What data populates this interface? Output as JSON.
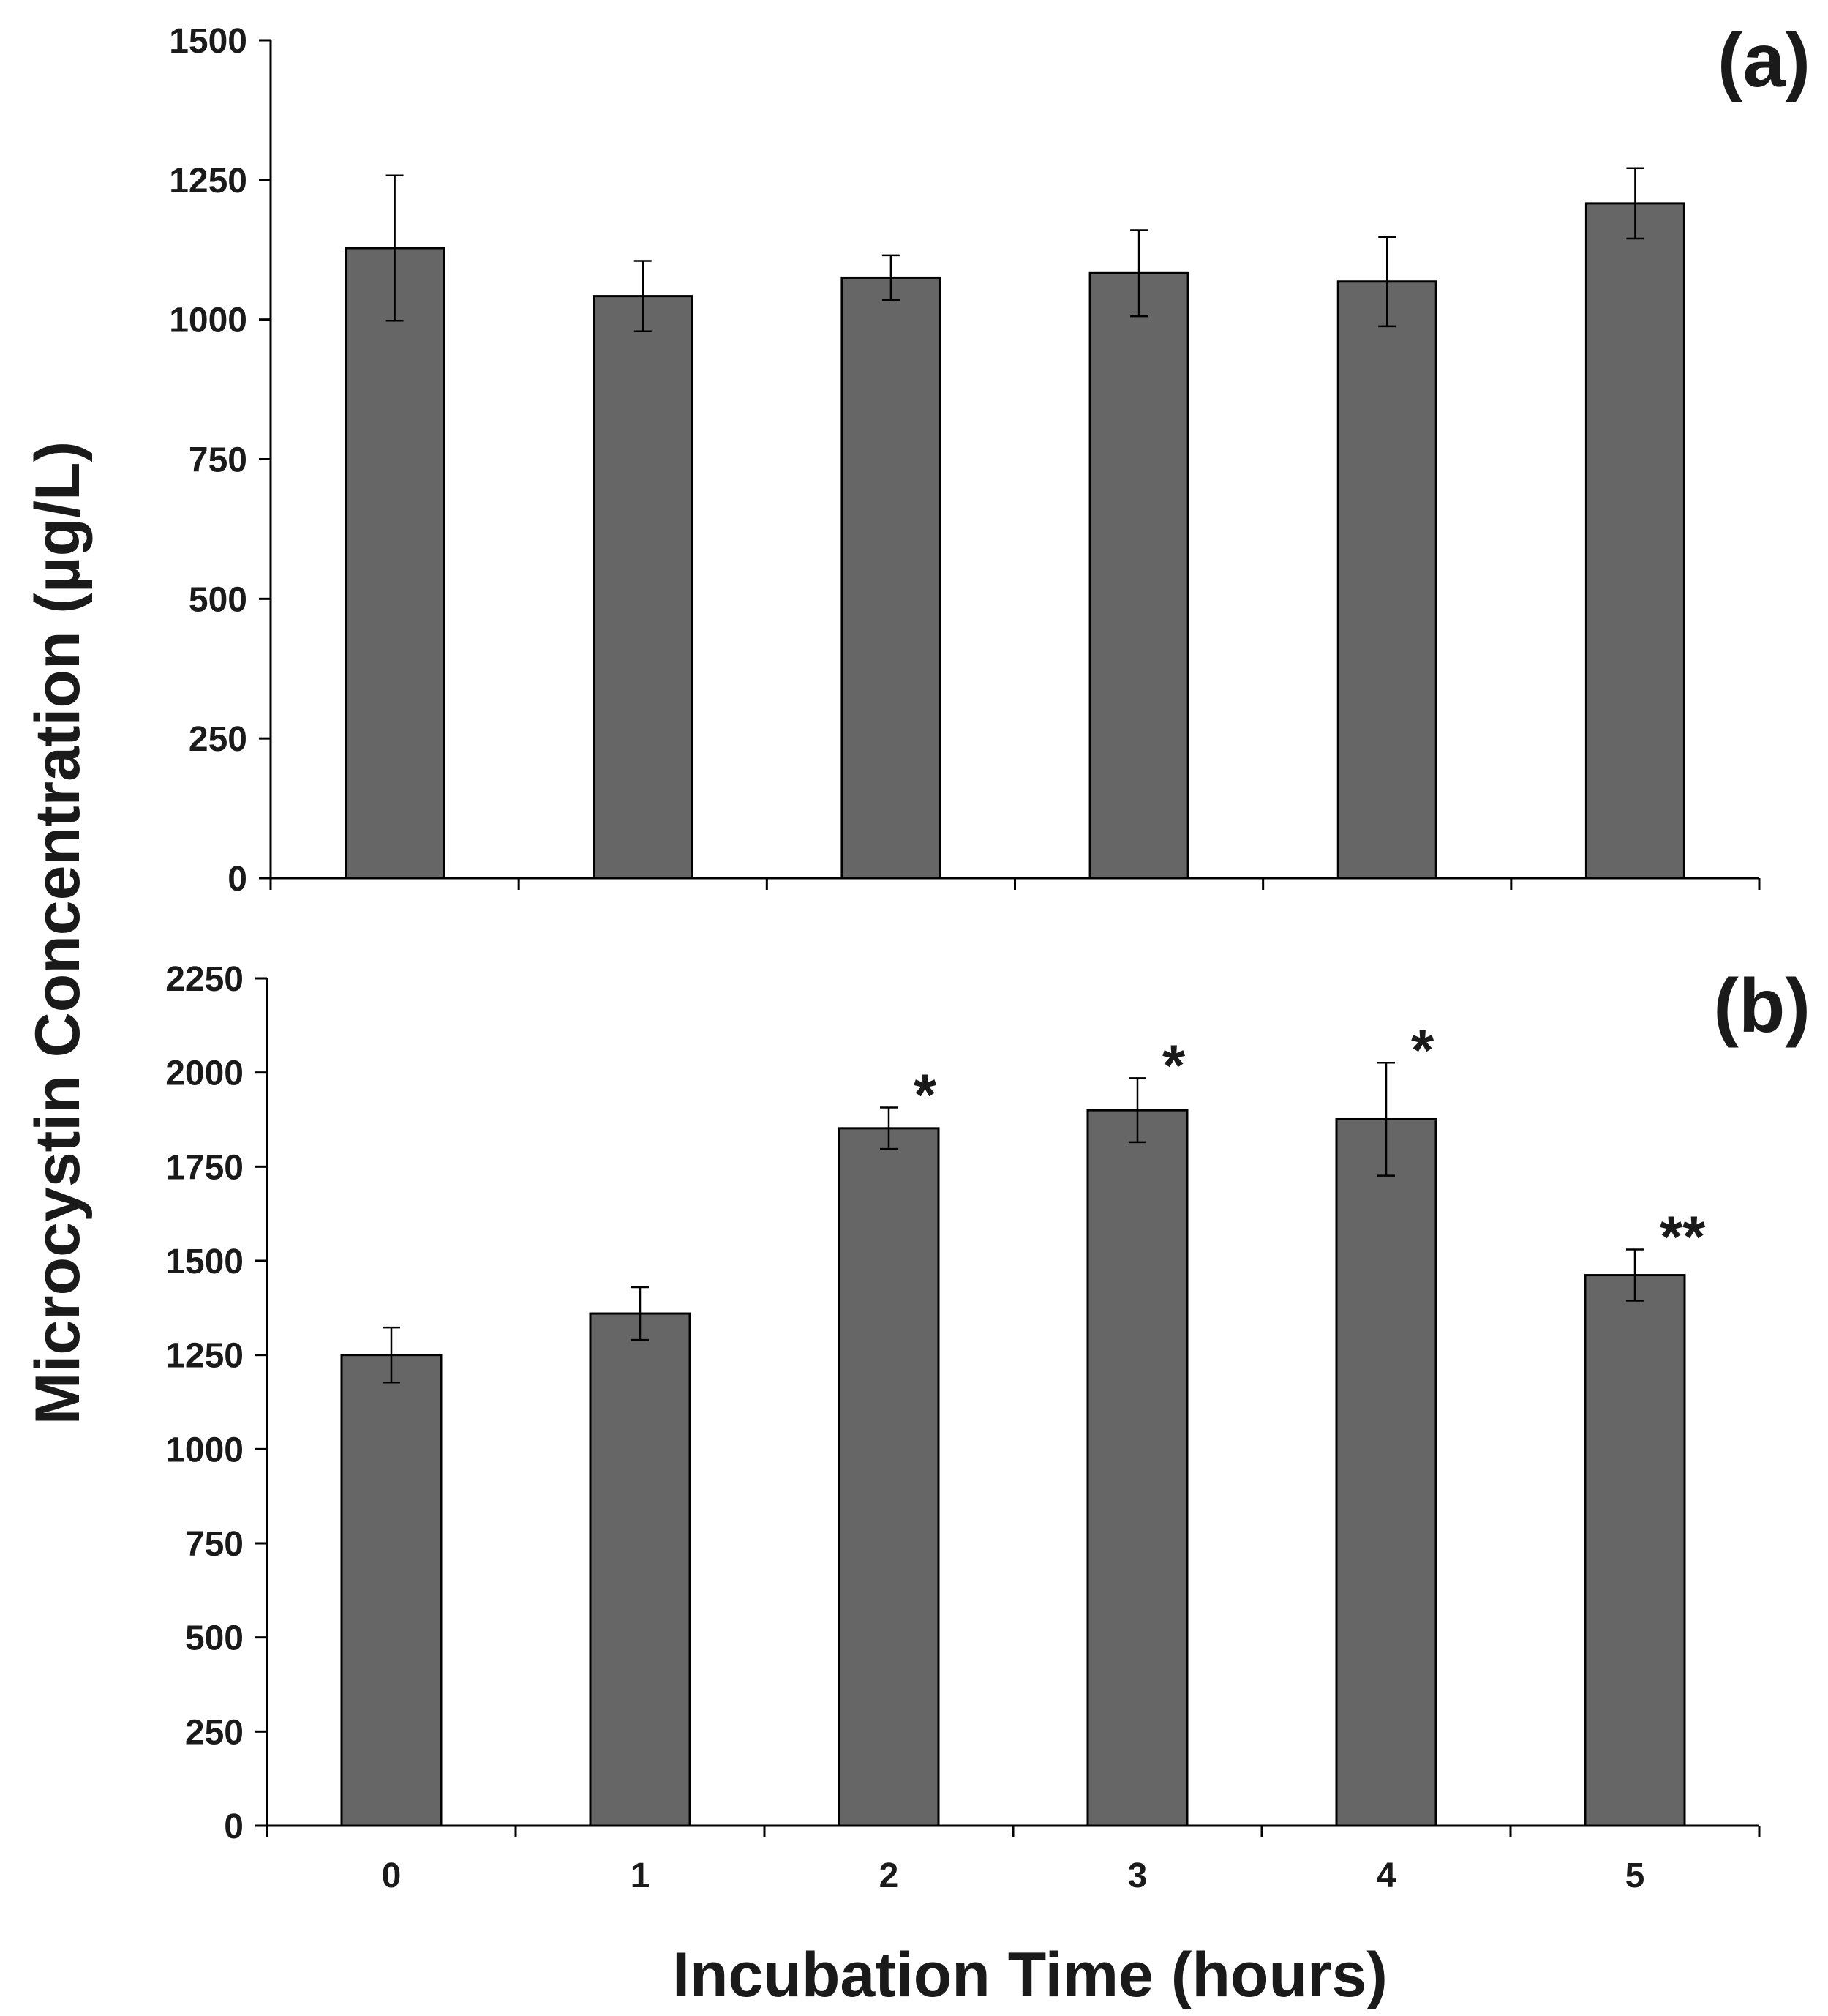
{
  "colors": {
    "bar_fill": "#666666",
    "axis": "#000000",
    "background": "#ffffff"
  },
  "ylabel": "Microcystin Concentration (µg/L)",
  "xlabel": "Incubation Time (hours)",
  "chart_data": [
    {
      "type": "bar",
      "panel": "(a)",
      "categories": [
        "0",
        "1",
        "2",
        "3",
        "4",
        "5"
      ],
      "values": [
        1128,
        1042,
        1075,
        1083,
        1068,
        1208
      ],
      "errors": [
        130,
        63,
        40,
        77,
        80,
        63
      ],
      "significance": [
        "",
        "",
        "",
        "",
        "",
        ""
      ],
      "ylim": [
        0,
        1500
      ],
      "yticks": [
        "0",
        "250",
        "500",
        "750",
        "1000",
        "1250",
        "1500"
      ],
      "xlabel": "",
      "ylabel": "Microcystin Concentration (µg/L)"
    },
    {
      "type": "bar",
      "panel": "(b)",
      "categories": [
        "0",
        "1",
        "2",
        "3",
        "4",
        "5"
      ],
      "values": [
        1250,
        1360,
        1852,
        1900,
        1876,
        1462
      ],
      "errors": [
        73,
        70,
        55,
        85,
        150,
        68
      ],
      "significance": [
        "",
        "",
        "*",
        "*",
        "*",
        "**"
      ],
      "ylim": [
        0,
        2250
      ],
      "yticks": [
        "0",
        "250",
        "500",
        "750",
        "1000",
        "1250",
        "1500",
        "1750",
        "2000",
        "2250"
      ],
      "xlabel": "Incubation Time (hours)",
      "ylabel": "Microcystin Concentration (µg/L)"
    }
  ]
}
